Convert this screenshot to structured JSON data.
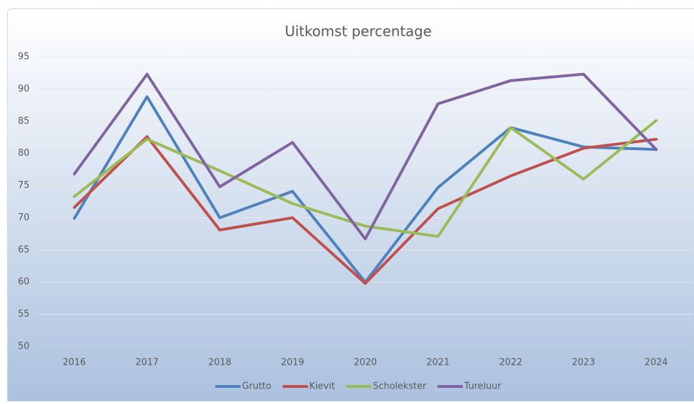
{
  "chart_data": {
    "type": "line",
    "title": "Uitkomst percentage",
    "categories": [
      "2016",
      "2017",
      "2018",
      "2019",
      "2020",
      "2021",
      "2022",
      "2023",
      "2024"
    ],
    "series": [
      {
        "name": "Grutto",
        "color": "#4f81bd",
        "values": [
          69.9,
          88.8,
          70,
          74.1,
          60,
          74.7,
          84,
          81,
          80.6
        ]
      },
      {
        "name": "Kievit",
        "color": "#c0504d",
        "values": [
          71.6,
          82.6,
          68.1,
          70,
          59.8,
          71.4,
          76.5,
          80.8,
          82.2
        ]
      },
      {
        "name": "Scholekster",
        "color": "#9bbb59",
        "values": [
          73.3,
          82.2,
          77.3,
          72.2,
          68.7,
          67.1,
          84,
          76,
          85.1
        ]
      },
      {
        "name": "Tureluur",
        "color": "#8064a2",
        "values": [
          76.8,
          92.3,
          74.8,
          81.7,
          66.7,
          87.7,
          91.3,
          92.3,
          80.6
        ]
      }
    ],
    "ylim": [
      50,
      95
    ],
    "yticks": [
      50,
      55,
      60,
      65,
      70,
      75,
      80,
      85,
      90,
      95
    ],
    "grid": true,
    "legend": "bottom"
  }
}
